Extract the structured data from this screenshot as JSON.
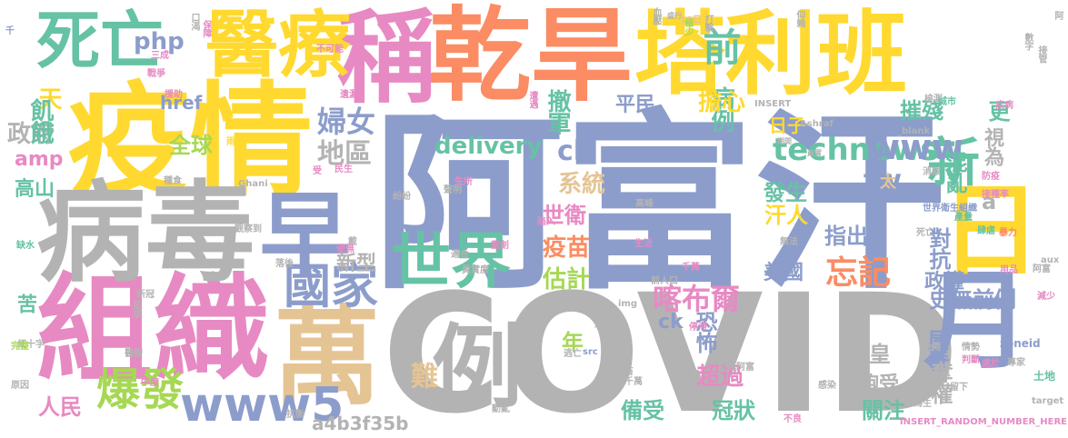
{
  "palette": {
    "blue": "#8c9dcb",
    "orange": "#fb8c63",
    "green": "#66c2a5",
    "pink": "#e78ac3",
    "lime": "#a6d854",
    "yellow": "#ffd92f",
    "tan": "#e5c494",
    "gray": "#b3b3b3"
  },
  "words": [
    {
      "text": "阿富汗",
      "color": "#8c9dcb"
    },
    {
      "text": "COVID",
      "color": "#b3b3b3"
    },
    {
      "text": "疫情",
      "color": "#ffd92f"
    },
    {
      "text": "組織",
      "color": "#e78ac3"
    },
    {
      "text": "稱",
      "color": "#e78ac3"
    },
    {
      "text": "乾旱",
      "color": "#fb8c63"
    },
    {
      "text": "塔利班",
      "color": "#ffd92f"
    },
    {
      "text": "病毒",
      "color": "#b3b3b3"
    },
    {
      "text": "萬",
      "color": "#e5c494"
    },
    {
      "text": "醫療",
      "color": "#ffd92f"
    },
    {
      "text": "月",
      "color": "#8c9dcb"
    },
    {
      "text": "日",
      "color": "#ffd92f"
    },
    {
      "text": "死亡",
      "color": "#66c2a5"
    },
    {
      "text": "早",
      "color": "#8c9dcb"
    },
    {
      "text": "例",
      "color": "#b3b3b3"
    },
    {
      "text": "世界",
      "color": "#66c2a5"
    },
    {
      "text": "國家",
      "color": "#8c9dcb"
    },
    {
      "text": "新",
      "color": "#66c2a5"
    },
    {
      "text": "爆發",
      "color": "#a6d854"
    },
    {
      "text": "www5",
      "color": "#8c9dcb"
    },
    {
      "text": "technews",
      "color": "#66c2a5"
    },
    {
      "text": "www",
      "color": "#8c9dcb"
    },
    {
      "text": "delivery",
      "color": "#66c2a5"
    },
    {
      "text": "忘記",
      "color": "#fb8c63"
    },
    {
      "text": "喀布爾",
      "color": "#e78ac3"
    },
    {
      "text": "前",
      "color": "#66c2a5"
    },
    {
      "text": "php",
      "color": "#8c9dcb"
    },
    {
      "text": "婦女",
      "color": "#8c9dcb"
    },
    {
      "text": "地區",
      "color": "#b3b3b3"
    },
    {
      "text": "政府",
      "color": "#b3b3b3"
    },
    {
      "text": "天",
      "color": "#ffd92f"
    },
    {
      "text": "href",
      "color": "#8c9dcb"
    },
    {
      "text": "飢餓",
      "color": "#66c2a5"
    },
    {
      "text": "amp",
      "color": "#e78ac3"
    },
    {
      "text": "全球",
      "color": "#a6d854"
    },
    {
      "text": "高山",
      "color": "#66c2a5"
    },
    {
      "text": "病例",
      "color": "#66c2a5"
    },
    {
      "text": "撤軍",
      "color": "#66c2a5"
    },
    {
      "text": "平民",
      "color": "#8c9dcb"
    },
    {
      "text": "擔心",
      "color": "#ffd92f"
    },
    {
      "text": "日子",
      "color": "#ffd92f"
    },
    {
      "text": "tw",
      "color": "#8c9dcb"
    },
    {
      "text": "cb",
      "color": "#8c9dcb"
    },
    {
      "text": "系統",
      "color": "#e5c494"
    },
    {
      "text": "世衛",
      "color": "#e78ac3"
    },
    {
      "text": "疫苗",
      "color": "#fb8c63"
    },
    {
      "text": "估計",
      "color": "#a6d854"
    },
    {
      "text": "汗人",
      "color": "#ffd92f"
    },
    {
      "text": "發生",
      "color": "#66c2a5"
    },
    {
      "text": "指出",
      "color": "#8c9dcb"
    },
    {
      "text": "美國",
      "color": "#8c9dcb"
    },
    {
      "text": "混亂",
      "color": "#66c2a5"
    },
    {
      "text": "摧殘",
      "color": "#66c2a5"
    },
    {
      "text": "更",
      "color": "#66c2a5"
    },
    {
      "text": "視為",
      "color": "#b3b3b3"
    },
    {
      "text": "a",
      "color": "#b3b3b3"
    },
    {
      "text": "對抗",
      "color": "#8c9dcb"
    },
    {
      "text": "政權",
      "color": "#8c9dcb"
    },
    {
      "text": "史無前例",
      "color": "#8c9dcb"
    },
    {
      "text": "屋脊",
      "color": "#8c9dcb"
    },
    {
      "text": "奪權",
      "color": "#b3b3b3"
    },
    {
      "text": "倉皇",
      "color": "#b3b3b3"
    },
    {
      "text": "飽受",
      "color": "#b3b3b3"
    },
    {
      "text": "關注",
      "color": "#66c2a5"
    },
    {
      "text": "冠狀",
      "color": "#66c2a5"
    },
    {
      "text": "超過",
      "color": "#e78ac3"
    },
    {
      "text": "恐怖",
      "color": "#8c9dcb"
    },
    {
      "text": "ck",
      "color": "#8c9dcb"
    },
    {
      "text": "n",
      "color": "#b3b3b3"
    },
    {
      "text": "年",
      "color": "#a6d854"
    },
    {
      "text": "難",
      "color": "#e5c494"
    },
    {
      "text": "備受",
      "color": "#66c2a5"
    },
    {
      "text": "新型",
      "color": "#b3b3b3"
    },
    {
      "text": "人民",
      "color": "#e78ac3"
    },
    {
      "text": "苦",
      "color": "#66c2a5"
    },
    {
      "text": "a4b3f35b",
      "color": "#b3b3b3"
    },
    {
      "text": "太",
      "color": "#e5c494"
    },
    {
      "text": "zoneid",
      "color": "#8c9dcb"
    },
    {
      "text": "INSERT_RANDOM_NUMBER_HERE",
      "color": "#e78ac3"
    },
    {
      "text": "target",
      "color": "#b3b3b3"
    },
    {
      "text": "土地",
      "color": "#66c2a5"
    },
    {
      "text": "阿富",
      "color": "#b3b3b3"
    },
    {
      "text": "接管",
      "color": "#b3b3b3"
    },
    {
      "text": "數字",
      "color": "#b3b3b3"
    },
    {
      "text": "阿",
      "color": "#b3b3b3"
    },
    {
      "text": "打擊",
      "color": "#b3b3b3"
    },
    {
      "text": "盛行",
      "color": "#b3b3b3"
    },
    {
      "text": "19日",
      "color": "#e5c494"
    },
    {
      "text": "仰賴",
      "color": "#b3b3b3"
    },
    {
      "text": "INSERT",
      "color": "#b3b3b3"
    },
    {
      "text": "檢測",
      "color": "#b3b3b3"
    },
    {
      "text": "城市",
      "color": "#66c2a5"
    },
    {
      "text": "疾病",
      "color": "#e78ac3"
    },
    {
      "text": "Ashraf",
      "color": "#b3b3b3"
    },
    {
      "text": "_blank",
      "color": "#b3b3b3"
    },
    {
      "text": "期間",
      "color": "#b3b3b3"
    },
    {
      "text": "員實",
      "color": "#b3b3b3"
    },
    {
      "text": "消散",
      "color": "#b3b3b3"
    },
    {
      "text": "防疫",
      "color": "#e78ac3"
    },
    {
      "text": "接種率",
      "color": "#e78ac3"
    },
    {
      "text": "世界衛生組織",
      "color": "#8c9dcb"
    },
    {
      "text": "產量",
      "color": "#66c2a5"
    },
    {
      "text": "死亡",
      "color": "#b3b3b3"
    },
    {
      "text": "肆虐",
      "color": "#66c2a5"
    },
    {
      "text": "暴力",
      "color": "#fb8c63"
    },
    {
      "text": "aux",
      "color": "#b3b3b3"
    },
    {
      "text": "用品",
      "color": "#e78ac3"
    },
    {
      "text": "遭遇",
      "color": "#e78ac3"
    },
    {
      "text": "血壓",
      "color": "#b3b3b3"
    },
    {
      "text": "極少",
      "color": "#a6d854"
    },
    {
      "text": "生活",
      "color": "#e78ac3"
    },
    {
      "text": "無法",
      "color": "#b3b3b3"
    },
    {
      "text": "失所",
      "color": "#e78ac3"
    },
    {
      "text": "不可能",
      "color": "#e78ac3"
    },
    {
      "text": "口渴",
      "color": "#b3b3b3"
    },
    {
      "text": "保障",
      "color": "#e78ac3"
    },
    {
      "text": "三成",
      "color": "#e78ac3"
    },
    {
      "text": "戰爭",
      "color": "#e78ac3"
    },
    {
      "text": "援助",
      "color": "#e78ac3"
    },
    {
      "text": "雨量",
      "color": "#ffd92f"
    },
    {
      "text": "受",
      "color": "#e78ac3"
    },
    {
      "text": "民生",
      "color": "#e78ac3"
    },
    {
      "text": "Ghani",
      "color": "#b3b3b3"
    },
    {
      "text": "遺漏",
      "color": "#e78ac3"
    },
    {
      "text": "適合",
      "color": "#b3b3b3"
    },
    {
      "text": "千萬",
      "color": "#e78ac3"
    },
    {
      "text": "員實度",
      "color": "#b3b3b3"
    },
    {
      "text": "減少",
      "color": "#e78ac3"
    },
    {
      "text": "sw",
      "color": "#b3b3b3"
    },
    {
      "text": "新冠",
      "color": "#b3b3b3"
    },
    {
      "text": "症狀",
      "color": "#b3b3b3"
    },
    {
      "text": "醫療",
      "color": "#b3b3b3"
    },
    {
      "text": "紅十字",
      "color": "#b3b3b3"
    },
    {
      "text": "原因",
      "color": "#b3b3b3"
    },
    {
      "text": "完整",
      "color": "#a6d854"
    },
    {
      "text": "缺水",
      "color": "#66c2a5"
    },
    {
      "text": "千",
      "color": "#8c9dcb"
    },
    {
      "text": "img",
      "color": "#b3b3b3"
    },
    {
      "text": "src",
      "color": "#8c9dcb"
    },
    {
      "text": "一半",
      "color": "#b3b3b3"
    },
    {
      "text": "七成",
      "color": "#b3b3b3"
    },
    {
      "text": "感染",
      "color": "#b3b3b3"
    },
    {
      "text": "分開",
      "color": "#b3b3b3"
    },
    {
      "text": "情勢",
      "color": "#b3b3b3"
    },
    {
      "text": "判斷",
      "color": "#e78ac3"
    },
    {
      "text": "處於",
      "color": "#e78ac3"
    },
    {
      "text": "專家",
      "color": "#b3b3b3"
    },
    {
      "text": "牲畜",
      "color": "#b3b3b3"
    },
    {
      "text": "萬阿富",
      "color": "#b3b3b3"
    },
    {
      "text": "停滯",
      "color": "#e78ac3"
    },
    {
      "text": "狀態",
      "color": "#b3b3b3"
    },
    {
      "text": "不良",
      "color": "#e78ac3"
    },
    {
      "text": "抗衡",
      "color": "#b3b3b3"
    },
    {
      "text": "留下",
      "color": "#b3b3b3"
    },
    {
      "text": "為生",
      "color": "#b3b3b3"
    },
    {
      "text": "種子",
      "color": "#b3b3b3"
    },
    {
      "text": "中度",
      "color": "#e78ac3"
    },
    {
      "text": "遏",
      "color": "#b3b3b3"
    },
    {
      "text": "動亂",
      "color": "#b3b3b3"
    },
    {
      "text": "高峰",
      "color": "#b3b3b3"
    },
    {
      "text": "前人口",
      "color": "#b3b3b3"
    },
    {
      "text": "逃亡",
      "color": "#b3b3b3"
    },
    {
      "text": "遭受",
      "color": "#b3b3b3"
    },
    {
      "text": "千萬",
      "color": "#b3b3b3"
    },
    {
      "text": "種食",
      "color": "#b3b3b3"
    },
    {
      "text": "紛紛",
      "color": "#b3b3b3"
    },
    {
      "text": "聲明",
      "color": "#b3b3b3"
    },
    {
      "text": "陷入",
      "color": "#e78ac3"
    },
    {
      "text": "戴",
      "color": "#b3b3b3"
    },
    {
      "text": "重創",
      "color": "#e78ac3"
    },
    {
      "text": "落後",
      "color": "#b3b3b3"
    },
    {
      "text": "使無",
      "color": "#e78ac3"
    },
    {
      "text": "觀察到",
      "color": "#b3b3b3"
    }
  ]
}
